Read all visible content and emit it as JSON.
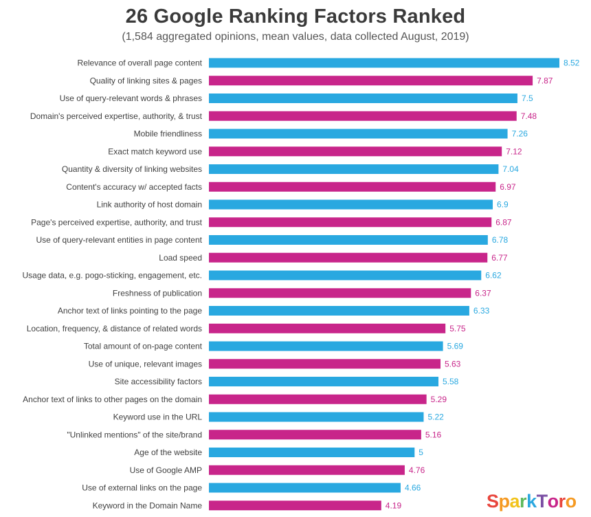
{
  "chart_data": {
    "type": "bar",
    "orientation": "horizontal",
    "title": "26 Google Ranking Factors Ranked",
    "subtitle": "(1,584 aggregated opinions, mean values, data collected August, 2019)",
    "xlim": [
      0,
      8.52
    ],
    "grid": false,
    "legend": "none",
    "categories": [
      "Relevance of overall page content",
      "Quality of linking sites & pages",
      "Use of query-relevant words & phrases",
      "Domain's perceived expertise, authority, & trust",
      "Mobile friendliness",
      "Exact match keyword use",
      "Quantity & diversity of linking websites",
      "Content's accuracy w/ accepted facts",
      "Link authority of host domain",
      "Page's perceived expertise, authority, and trust",
      "Use of query-relevant entities in page content",
      "Load speed",
      "Usage data, e.g. pogo-sticking, engagement, etc.",
      "Freshness of publication",
      "Anchor text of links pointing to the page",
      "Location, frequency, & distance of related words",
      "Total amount of on-page content",
      "Use of unique, relevant images",
      "Site accessibility factors",
      "Anchor text of links to other pages on the domain",
      "Keyword use in the URL",
      "\"Unlinked mentions\" of the site/brand",
      "Age of the website",
      "Use of Google AMP",
      "Use of external links on the page",
      "Keyword in the Domain Name"
    ],
    "values": [
      8.52,
      7.87,
      7.5,
      7.48,
      7.26,
      7.12,
      7.04,
      6.97,
      6.9,
      6.87,
      6.78,
      6.77,
      6.62,
      6.37,
      6.33,
      5.75,
      5.69,
      5.63,
      5.58,
      5.29,
      5.22,
      5.16,
      5,
      4.76,
      4.66,
      4.19
    ],
    "value_labels": [
      "8.52",
      "7.87",
      "7.5",
      "7.48",
      "7.26",
      "7.12",
      "7.04",
      "6.97",
      "6.9",
      "6.87",
      "6.78",
      "6.77",
      "6.62",
      "6.37",
      "6.33",
      "5.75",
      "5.69",
      "5.63",
      "5.58",
      "5.29",
      "5.22",
      "5.16",
      "5",
      "4.76",
      "4.66",
      "4.19"
    ],
    "colors": [
      "#29a8e0",
      "#c8258a"
    ]
  },
  "branding": {
    "letters": [
      "S",
      "p",
      "a",
      "r",
      "k",
      "T",
      "o",
      "r",
      "o"
    ],
    "colors": [
      "#e8453c",
      "#f59a23",
      "#f2c31b",
      "#5cb85c",
      "#2ba7df",
      "#7a4ea3",
      "#c8258a",
      "#e8453c",
      "#f59a23"
    ]
  }
}
